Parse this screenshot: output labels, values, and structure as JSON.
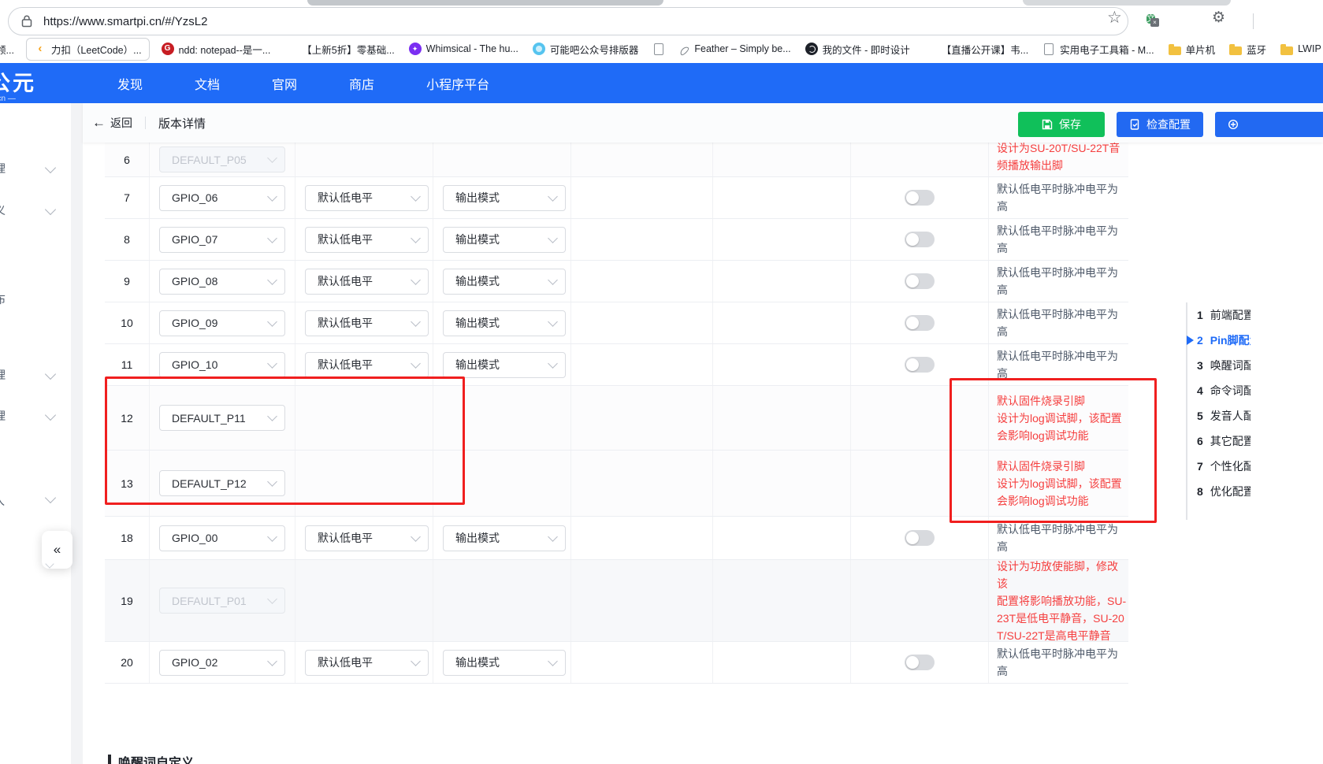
{
  "browser": {
    "url": "https://www.smartpi.cn/#/YzsL2",
    "bookmarks": [
      {
        "label": "领...",
        "icon": "cut"
      },
      {
        "label": "力扣（LeetCode）...",
        "icon": "leetcode",
        "boxed": true
      },
      {
        "label": "ndd: notepad--是一...",
        "icon": "gitee"
      },
      {
        "label": "【上新5折】零基础...",
        "icon": "bilibili"
      },
      {
        "label": "Whimsical - The hu...",
        "icon": "whimsical"
      },
      {
        "label": "可能吧公众号排版器",
        "icon": "circle-blue"
      },
      {
        "label": "",
        "icon": "page"
      },
      {
        "label": "Feather – Simply be...",
        "icon": "feather"
      },
      {
        "label": "我的文件 - 即时设计",
        "icon": "jsdesign"
      },
      {
        "label": "【直播公开课】韦...",
        "icon": "bilibili"
      },
      {
        "label": "实用电子工具箱 - M...",
        "icon": "page"
      },
      {
        "label": "单片机",
        "icon": "folder"
      },
      {
        "label": "蓝牙",
        "icon": "folder"
      },
      {
        "label": "LWIP",
        "icon": "folder"
      },
      {
        "label": "›",
        "icon": "chevron"
      }
    ]
  },
  "nav": {
    "logo_line1": "公元",
    "logo_line2": "pi.cn —",
    "items": [
      "发现",
      "文档",
      "官网",
      "商店",
      "小程序平台"
    ]
  },
  "toolbar": {
    "back_label": "返回",
    "title": "版本详情",
    "save_label": "保存",
    "check_label": "检查配置"
  },
  "table": {
    "rows": [
      {
        "num": "6",
        "pin": "DEFAULT_P05",
        "pin_disabled": true,
        "level": "",
        "mode": "",
        "toggle": null,
        "note_lines": [
          "设计为SU-20T/SU-22T音",
          "频播放输出脚"
        ],
        "note_red": true,
        "row_bg": "#fcfcfd",
        "cut_top": true
      },
      {
        "num": "7",
        "pin": "GPIO_06",
        "level": "默认低电平",
        "mode": "输出模式",
        "toggle": "off",
        "note_lines": [
          "默认低电平时脉冲电平为高"
        ],
        "note_red": false,
        "row_bg": "#ffffff"
      },
      {
        "num": "8",
        "pin": "GPIO_07",
        "level": "默认低电平",
        "mode": "输出模式",
        "toggle": "off",
        "note_lines": [
          "默认低电平时脉冲电平为高"
        ],
        "note_red": false,
        "row_bg": "#ffffff"
      },
      {
        "num": "9",
        "pin": "GPIO_08",
        "level": "默认低电平",
        "mode": "输出模式",
        "toggle": "off",
        "note_lines": [
          "默认低电平时脉冲电平为高"
        ],
        "note_red": false,
        "row_bg": "#ffffff"
      },
      {
        "num": "10",
        "pin": "GPIO_09",
        "level": "默认低电平",
        "mode": "输出模式",
        "toggle": "off",
        "note_lines": [
          "默认低电平时脉冲电平为高"
        ],
        "note_red": false,
        "row_bg": "#ffffff"
      },
      {
        "num": "11",
        "pin": "GPIO_10",
        "level": "默认低电平",
        "mode": "输出模式",
        "toggle": "off",
        "note_lines": [
          "默认低电平时脉冲电平为高"
        ],
        "note_red": false,
        "row_bg": "#ffffff"
      },
      {
        "num": "12",
        "pin": "DEFAULT_P11",
        "level": "",
        "mode": "",
        "toggle": null,
        "note_lines": [
          "默认固件烧录引脚",
          "设计为log调试脚，该配置",
          "会影响log调试功能"
        ],
        "note_red": true,
        "row_bg": "#fcfcfd"
      },
      {
        "num": "13",
        "pin": "DEFAULT_P12",
        "level": "",
        "mode": "",
        "toggle": null,
        "note_lines": [
          "默认固件烧录引脚",
          "设计为log调试脚，该配置",
          "会影响log调试功能"
        ],
        "note_red": true,
        "row_bg": "#fcfcfd"
      },
      {
        "num": "18",
        "pin": "GPIO_00",
        "level": "默认低电平",
        "mode": "输出模式",
        "toggle": "off",
        "note_lines": [
          "默认低电平时脉冲电平为高"
        ],
        "note_red": false,
        "row_bg": "#ffffff"
      },
      {
        "num": "19",
        "pin": "DEFAULT_P01",
        "pin_disabled": true,
        "level": "",
        "mode": "",
        "toggle": null,
        "note_lines": [
          "设计为功放使能脚，修改该",
          "配置将影响播放功能，SU-",
          "23T是低电平静音，SU-20",
          "T/SU-22T是高电平静音"
        ],
        "note_red": true,
        "row_bg": "#f7f8fa"
      },
      {
        "num": "20",
        "pin": "GPIO_02",
        "level": "默认低电平",
        "mode": "输出模式",
        "toggle": "off",
        "note_lines": [
          "默认低电平时脉冲电平为高"
        ],
        "note_red": false,
        "row_bg": "#ffffff"
      }
    ]
  },
  "outline": {
    "items": [
      {
        "num": "1",
        "label": "前端配置",
        "active": false
      },
      {
        "num": "2",
        "label": "Pin脚配置",
        "active": true
      },
      {
        "num": "3",
        "label": "唤醒词配置",
        "active": false
      },
      {
        "num": "4",
        "label": "命令词配置",
        "active": false
      },
      {
        "num": "5",
        "label": "发音人配置",
        "active": false
      },
      {
        "num": "6",
        "label": "其它配置",
        "active": false
      },
      {
        "num": "7",
        "label": "个性化配置",
        "active": false
      },
      {
        "num": "8",
        "label": "优化配置",
        "active": false
      }
    ]
  },
  "sidebar": {
    "collapse_label": "«",
    "fragments": [
      "理",
      "义",
      "布",
      "理",
      "理",
      "ㄟ"
    ]
  },
  "footer_heading": "唤醒词自定义",
  "colors": {
    "accent_blue": "#1f6bf7",
    "save_green": "#10c05a",
    "warning_red": "#f53f3f",
    "annotation_red": "#f01f1f"
  }
}
